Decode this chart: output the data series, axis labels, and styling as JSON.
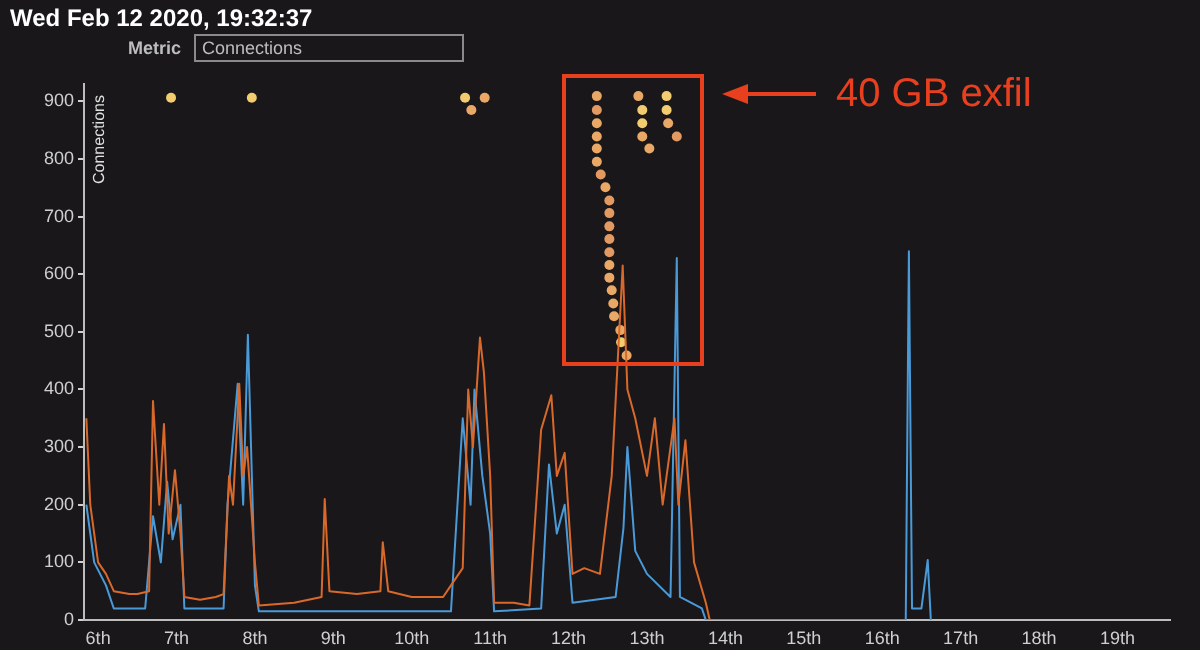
{
  "chart_data": {
    "type": "line",
    "title": "Wed Feb 12 2020, 19:32:37",
    "ylabel": "Connections",
    "annotations": [
      "Metric",
      "Connections",
      "40 GB exfil"
    ],
    "xlim": [
      5.82,
      19.67
    ],
    "xticks": [
      {
        "value": 6,
        "label": "6th"
      },
      {
        "value": 7,
        "label": "7th"
      },
      {
        "value": 8,
        "label": "8th"
      },
      {
        "value": 9,
        "label": "9th"
      },
      {
        "value": 10,
        "label": "10th"
      },
      {
        "value": 11,
        "label": "11th"
      },
      {
        "value": 12,
        "label": "12th"
      },
      {
        "value": 13,
        "label": "13th"
      },
      {
        "value": 14,
        "label": "14th"
      },
      {
        "value": 15,
        "label": "15th"
      },
      {
        "value": 16,
        "label": "16th"
      },
      {
        "value": 17,
        "label": "17th"
      },
      {
        "value": 18,
        "label": "18th"
      },
      {
        "value": 19,
        "label": "19th"
      }
    ],
    "ylim": [
      0,
      930
    ],
    "yticks": [
      0,
      100,
      200,
      300,
      400,
      500,
      600,
      700,
      800,
      900
    ],
    "grid": false,
    "legend": false,
    "series": [
      {
        "color": "#d9692a",
        "x": [
          5.85,
          5.9,
          5.95,
          6.0,
          6.1,
          6.2,
          6.4,
          6.5,
          6.65,
          6.7,
          6.78,
          6.84,
          6.9,
          6.98,
          7.05,
          7.1,
          7.3,
          7.5,
          7.6,
          7.67,
          7.72,
          7.8,
          7.85,
          7.9,
          8.0,
          8.05,
          8.5,
          8.85,
          8.89,
          8.95,
          9.3,
          9.6,
          9.63,
          9.7,
          10.0,
          10.4,
          10.5,
          10.65,
          10.72,
          10.78,
          10.87,
          10.92,
          11.0,
          11.05,
          11.3,
          11.5,
          11.65,
          11.78,
          11.85,
          11.95,
          12.05,
          12.2,
          12.4,
          12.55,
          12.69,
          12.75,
          12.85,
          13.0,
          13.1,
          13.2,
          13.35,
          13.4,
          13.49,
          13.6,
          13.75,
          13.8
        ],
        "values": [
          350,
          200,
          150,
          100,
          80,
          50,
          45,
          45,
          50,
          380,
          200,
          340,
          150,
          260,
          150,
          40,
          35,
          40,
          45,
          250,
          200,
          410,
          250,
          300,
          100,
          25,
          30,
          40,
          210,
          50,
          45,
          50,
          135,
          50,
          40,
          40,
          60,
          90,
          400,
          300,
          490,
          430,
          250,
          30,
          30,
          25,
          330,
          390,
          250,
          290,
          80,
          90,
          80,
          250,
          615,
          400,
          350,
          250,
          350,
          200,
          350,
          200,
          312,
          100,
          30,
          0
        ]
      },
      {
        "color": "#4a9ad8",
        "x": [
          5.85,
          5.95,
          6.1,
          6.2,
          6.6,
          6.7,
          6.8,
          6.88,
          6.95,
          7.05,
          7.1,
          7.6,
          7.65,
          7.78,
          7.85,
          7.91,
          8.0,
          8.05,
          9.0,
          10.5,
          10.65,
          10.75,
          10.8,
          10.9,
          11.0,
          11.05,
          11.65,
          11.75,
          11.85,
          11.95,
          12.05,
          12.6,
          12.7,
          12.75,
          12.85,
          13.0,
          13.3,
          13.38,
          13.42,
          13.7,
          13.75,
          16.3,
          16.34,
          16.38,
          16.5,
          16.58,
          16.62
        ],
        "values": [
          200,
          100,
          60,
          20,
          20,
          180,
          100,
          240,
          140,
          200,
          20,
          20,
          200,
          410,
          200,
          495,
          60,
          15,
          15,
          15,
          350,
          200,
          400,
          250,
          150,
          15,
          20,
          270,
          150,
          200,
          30,
          40,
          160,
          300,
          120,
          80,
          40,
          628,
          40,
          20,
          0,
          0,
          640,
          20,
          20,
          104,
          0
        ]
      },
      {
        "type": "scatter",
        "x": [
          6.93,
          7.96,
          10.68,
          10.93,
          10.76,
          12.36,
          12.36,
          12.36,
          12.36,
          12.36,
          12.36,
          12.41,
          12.47,
          12.52,
          12.52,
          12.52,
          12.52,
          12.52,
          12.52,
          12.52,
          12.55,
          12.57,
          12.58,
          12.66,
          12.67,
          12.74,
          12.89,
          12.94,
          12.94,
          12.94,
          13.03,
          13.25,
          13.25,
          13.27,
          13.38
        ],
        "values": [
          906,
          906,
          906,
          906,
          885,
          909,
          885,
          862,
          839,
          818,
          795,
          773,
          751,
          728,
          706,
          683,
          661,
          638,
          616,
          594,
          572,
          549,
          527,
          503,
          482,
          459,
          909,
          885,
          862,
          839,
          818,
          909,
          885,
          862,
          839
        ],
        "colors": [
          "#f2cc6e",
          "#f2cc6e",
          "#f2cc6e",
          "#e9a866",
          "#e9a866",
          "#e9a866",
          "#e39a62",
          "#e9a866",
          "#e9a866",
          "#e9a866",
          "#e9a866",
          "#e39a62",
          "#e9a866",
          "#e39a62",
          "#e39a62",
          "#e39a62",
          "#e39a62",
          "#e39a62",
          "#e9a866",
          "#e9a866",
          "#e9a866",
          "#e9a866",
          "#e9a866",
          "#e9a866",
          "#f2cc6e",
          "#e9a866",
          "#e9a866",
          "#f2cc6e",
          "#f2cc6e",
          "#e9a866",
          "#e9a866",
          "#f2cc6e",
          "#f2cc6e",
          "#e9a866",
          "#e39a62"
        ]
      }
    ]
  }
}
